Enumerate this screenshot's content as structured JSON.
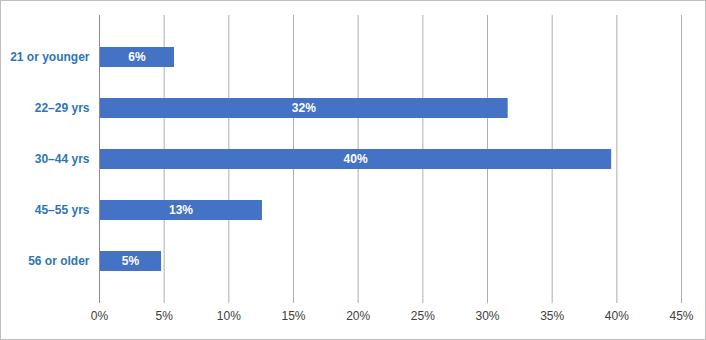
{
  "chart_data": {
    "type": "bar",
    "orientation": "horizontal",
    "categories": [
      "21 or younger",
      "22–29 yrs",
      "30–44 yrs",
      "45–55 yrs",
      "56 or older"
    ],
    "values": [
      5.8,
      31.6,
      39.6,
      12.6,
      4.8
    ],
    "value_labels": [
      "6%",
      "32%",
      "40%",
      "13%",
      "5%"
    ],
    "data_labels": true,
    "color": "#4472c4",
    "xlim": [
      0,
      45
    ],
    "xticks": [
      {
        "value": 0,
        "label": "0%"
      },
      {
        "value": 5,
        "label": "5%"
      },
      {
        "value": 10,
        "label": "10%"
      },
      {
        "value": 15,
        "label": "15%"
      },
      {
        "value": 20,
        "label": "20%"
      },
      {
        "value": 25,
        "label": "25%"
      },
      {
        "value": 30,
        "label": "30%"
      },
      {
        "value": 35,
        "label": "35%"
      },
      {
        "value": 40,
        "label": "40%"
      },
      {
        "value": 45,
        "label": "45%"
      }
    ],
    "grid": true
  }
}
